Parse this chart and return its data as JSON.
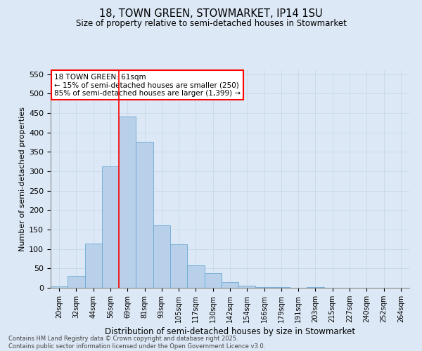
{
  "title": "18, TOWN GREEN, STOWMARKET, IP14 1SU",
  "subtitle": "Size of property relative to semi-detached houses in Stowmarket",
  "xlabel": "Distribution of semi-detached houses by size in Stowmarket",
  "ylabel": "Number of semi-detached properties",
  "bin_labels": [
    "20sqm",
    "32sqm",
    "44sqm",
    "56sqm",
    "69sqm",
    "81sqm",
    "93sqm",
    "105sqm",
    "117sqm",
    "130sqm",
    "142sqm",
    "154sqm",
    "166sqm",
    "179sqm",
    "191sqm",
    "203sqm",
    "215sqm",
    "227sqm",
    "240sqm",
    "252sqm",
    "264sqm"
  ],
  "bar_values": [
    3,
    30,
    113,
    313,
    440,
    375,
    160,
    112,
    57,
    38,
    15,
    5,
    2,
    1,
    0,
    1,
    0,
    0,
    0,
    0,
    0
  ],
  "bar_color": "#b8d0ea",
  "bar_edge_color": "#6aaad4",
  "grid_color": "#c8d8e8",
  "background_color": "#dce8f5",
  "vline_x": 3.5,
  "annotation_title": "18 TOWN GREEN: 61sqm",
  "annotation_line1": "← 15% of semi-detached houses are smaller (250)",
  "annotation_line2": "85% of semi-detached houses are larger (1,399) →",
  "annotation_box_color": "white",
  "annotation_box_edge": "red",
  "vline_color": "red",
  "footer_line1": "Contains HM Land Registry data © Crown copyright and database right 2025.",
  "footer_line2": "Contains public sector information licensed under the Open Government Licence v3.0.",
  "ylim": [
    0,
    560
  ],
  "yticks": [
    0,
    50,
    100,
    150,
    200,
    250,
    300,
    350,
    400,
    450,
    500,
    550
  ]
}
